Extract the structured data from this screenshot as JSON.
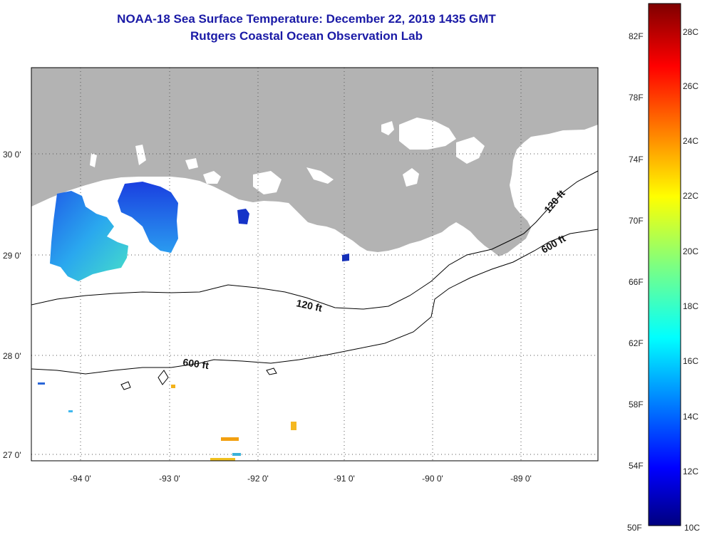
{
  "title": {
    "line1": "NOAA-18 Sea Surface Temperature:  December 22, 2019 1435 GMT",
    "line2": "Rutgers Coastal Ocean Observation Lab"
  },
  "map": {
    "lat_labels": [
      "30 0'",
      "29 0'",
      "28 0'",
      "27 0'"
    ],
    "lon_labels": [
      "-94 0'",
      "-93 0'",
      "-92 0'",
      "-91 0'",
      "-90 0'",
      "-89 0'"
    ],
    "contours": {
      "c120_lower": "120 ft",
      "c600_lower": "600 ft",
      "c120_upper": "120 ft",
      "c600_upper": "600 ft"
    },
    "colors": {
      "land": "#b3b3b3",
      "ocean": "#ffffff",
      "title": "#1a1aa6"
    }
  },
  "colorbar": {
    "fahrenheit": [
      "82F",
      "78F",
      "74F",
      "70F",
      "66F",
      "62F",
      "58F",
      "54F",
      "50F"
    ],
    "celsius": [
      "28C",
      "26C",
      "24C",
      "22C",
      "20C",
      "18C",
      "16C",
      "14C",
      "12C",
      "10C"
    ],
    "range_c": [
      10,
      29
    ]
  }
}
